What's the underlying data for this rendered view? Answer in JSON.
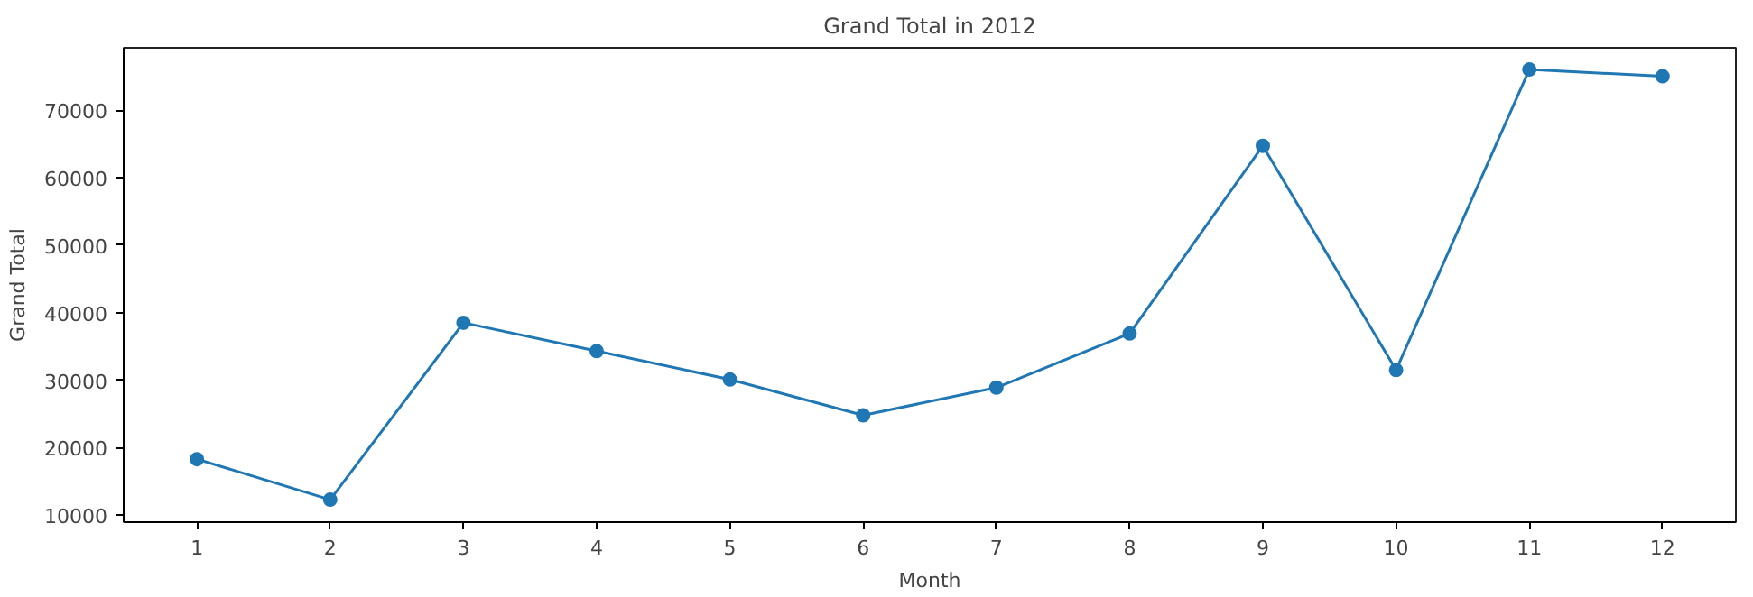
{
  "chart_data": {
    "type": "line",
    "title": "Grand Total in 2012",
    "xlabel": "Month",
    "ylabel": "Grand Total",
    "x": [
      1,
      2,
      3,
      4,
      5,
      6,
      7,
      8,
      9,
      10,
      11,
      12
    ],
    "series": [
      {
        "color": "#1f77b4",
        "values": [
          18300,
          12300,
          38500,
          34300,
          30100,
          24800,
          28900,
          36900,
          64700,
          31500,
          76000,
          75000
        ]
      }
    ],
    "xlim": [
      0.45,
      12.55
    ],
    "ylim": [
      8970,
      79220
    ],
    "xticks": [
      1,
      2,
      3,
      4,
      5,
      6,
      7,
      8,
      9,
      10,
      11,
      12
    ],
    "yticks": [
      10000,
      20000,
      30000,
      40000,
      50000,
      60000,
      70000
    ],
    "marker": "circle",
    "line_style": "solid",
    "grid": false
  }
}
